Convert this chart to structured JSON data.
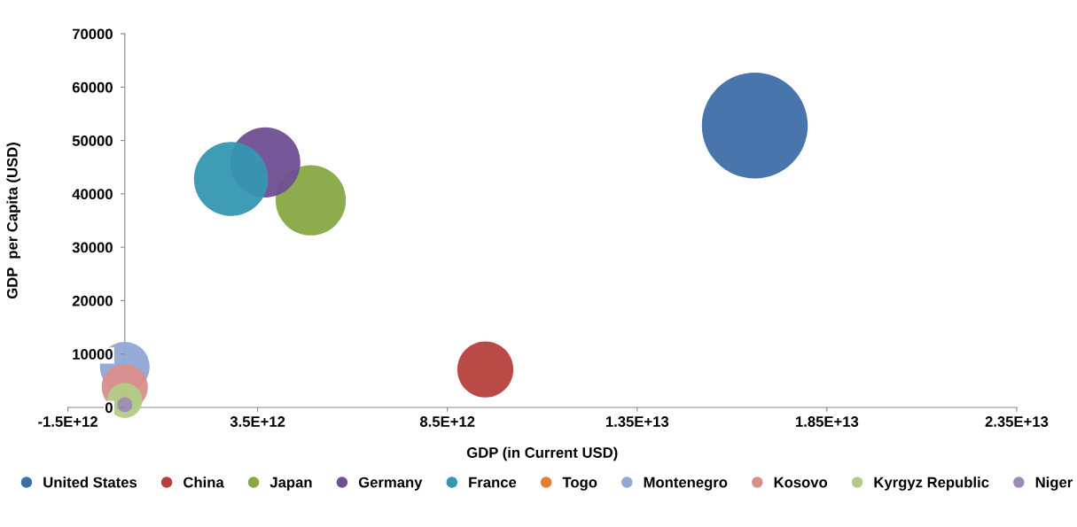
{
  "chart_data": {
    "type": "bubble",
    "xlabel": "GDP (in Current USD)",
    "ylabel": "GDP  per Capita (USD)",
    "xlim": [
      -1500000000000.0,
      23500000000000.0
    ],
    "xticks": [
      {
        "value": -1500000000000.0,
        "label": "-1.5E+12"
      },
      {
        "value": 3500000000000.0,
        "label": "3.5E+12"
      },
      {
        "value": 8500000000000.0,
        "label": "8.5E+12"
      },
      {
        "value": 13500000000000.0,
        "label": "1.35E+13"
      },
      {
        "value": 18500000000000.0,
        "label": "1.85E+13"
      },
      {
        "value": 23500000000000.0,
        "label": "2.35E+13"
      }
    ],
    "ylim": [
      0,
      70000
    ],
    "yticks": [
      0,
      10000,
      20000,
      30000,
      40000,
      50000,
      60000,
      70000
    ],
    "grid": false,
    "legend": "bottom",
    "series": [
      {
        "name": "United States",
        "color": "#3e6ea8",
        "x": [
          16600000000000.0
        ],
        "values": [
          52800
        ],
        "sizes": [
          1.0
        ]
      },
      {
        "name": "China",
        "color": "#b5403c",
        "x": [
          9500000000000.0
        ],
        "values": [
          7100
        ],
        "sizes": [
          0.28
        ]
      },
      {
        "name": "Japan",
        "color": "#87a844",
        "x": [
          4900000000000.0
        ],
        "values": [
          38800
        ],
        "sizes": [
          0.44
        ]
      },
      {
        "name": "Germany",
        "color": "#6f4f93",
        "x": [
          3700000000000.0
        ],
        "values": [
          45900
        ],
        "sizes": [
          0.44
        ]
      },
      {
        "name": "France",
        "color": "#3497b0",
        "x": [
          2800000000000.0
        ],
        "values": [
          42800
        ],
        "sizes": [
          0.49
        ]
      },
      {
        "name": "Togo",
        "color": "#e0812f",
        "x": [
          null
        ],
        "values": [
          null
        ],
        "sizes": [
          null
        ]
      },
      {
        "name": "Montenegro",
        "color": "#8fa8d6",
        "x": [
          0.0
        ],
        "values": [
          7600
        ],
        "sizes": [
          0.22
        ]
      },
      {
        "name": "Kosovo",
        "color": "#d88e8b",
        "x": [
          0.0
        ],
        "values": [
          3800
        ],
        "sizes": [
          0.19
        ]
      },
      {
        "name": "Kyrgyz Republic",
        "color": "#b2cc87",
        "x": [
          0.0
        ],
        "values": [
          1300
        ],
        "sizes": [
          0.11
        ]
      },
      {
        "name": "Niger",
        "color": "#9d8bb5",
        "x": [
          0.0
        ],
        "values": [
          500
        ],
        "sizes": [
          0.02
        ]
      }
    ]
  }
}
